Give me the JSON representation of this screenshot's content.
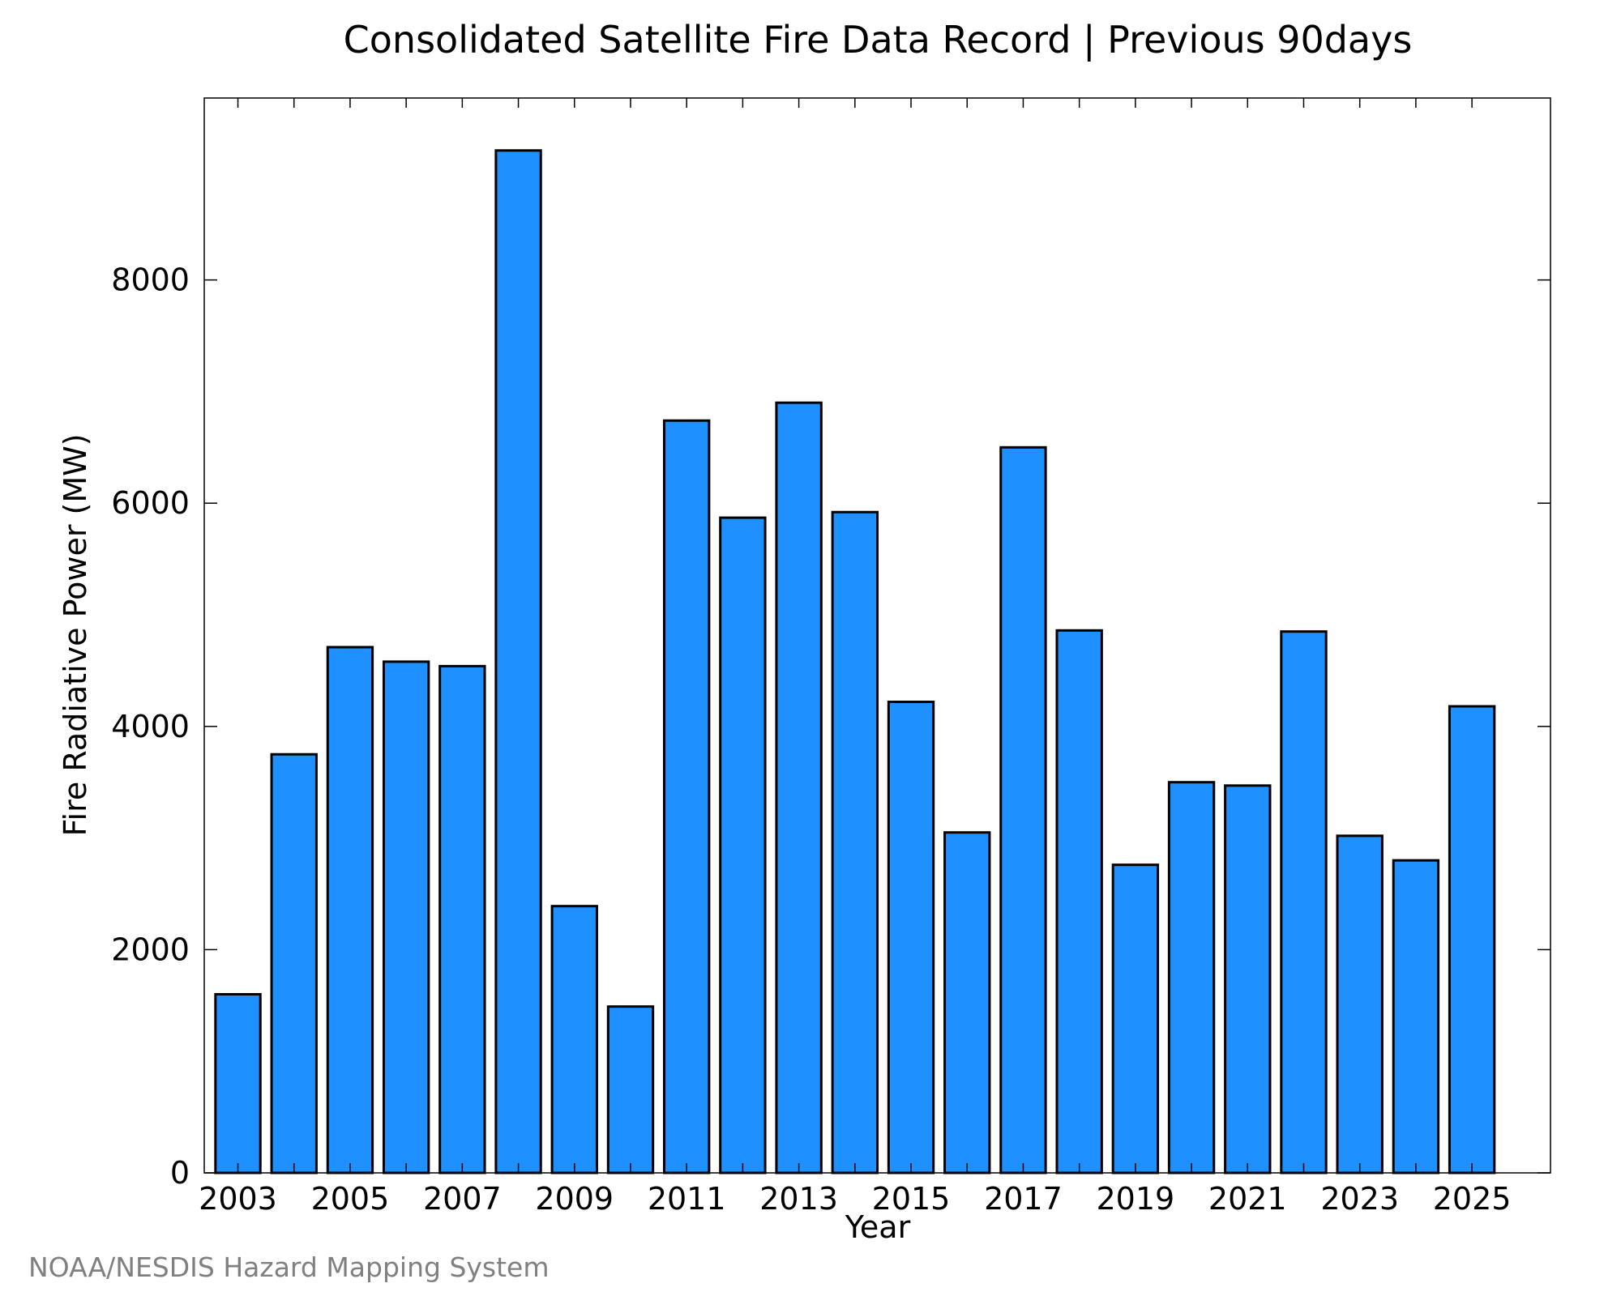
{
  "chart_data": {
    "type": "bar",
    "title": "Consolidated Satellite Fire Data Record | Previous 90days",
    "xlabel": "Year",
    "ylabel": "Fire Radiative Power (MW)",
    "categories": [
      "2003",
      "2004",
      "2005",
      "2006",
      "2007",
      "2008",
      "2009",
      "2010",
      "2011",
      "2012",
      "2013",
      "2014",
      "2015",
      "2016",
      "2017",
      "2018",
      "2019",
      "2020",
      "2021",
      "2022",
      "2023",
      "2024",
      "2025"
    ],
    "values": [
      1600,
      3750,
      4710,
      4580,
      4540,
      9160,
      2390,
      1490,
      6740,
      5870,
      6900,
      5920,
      4220,
      3050,
      6500,
      4860,
      2760,
      3500,
      3470,
      4850,
      3020,
      2800,
      4180
    ],
    "xtick_labels": [
      "2003",
      "2005",
      "2007",
      "2009",
      "2011",
      "2013",
      "2015",
      "2017",
      "2019",
      "2021",
      "2023",
      "2025"
    ],
    "ytick_labels": [
      "0",
      "2000",
      "4000",
      "6000",
      "8000"
    ],
    "yticks": [
      0,
      2000,
      4000,
      6000,
      8000
    ],
    "ylim": [
      0,
      9630
    ],
    "xlim": [
      2002.4,
      2026.4
    ],
    "grid": false,
    "legend": "none",
    "colors": {
      "bar_fill": "#1E90FF",
      "bar_edge": "#000000",
      "axis": "#000000"
    }
  },
  "credit": "NOAA/NESDIS Hazard Mapping System"
}
